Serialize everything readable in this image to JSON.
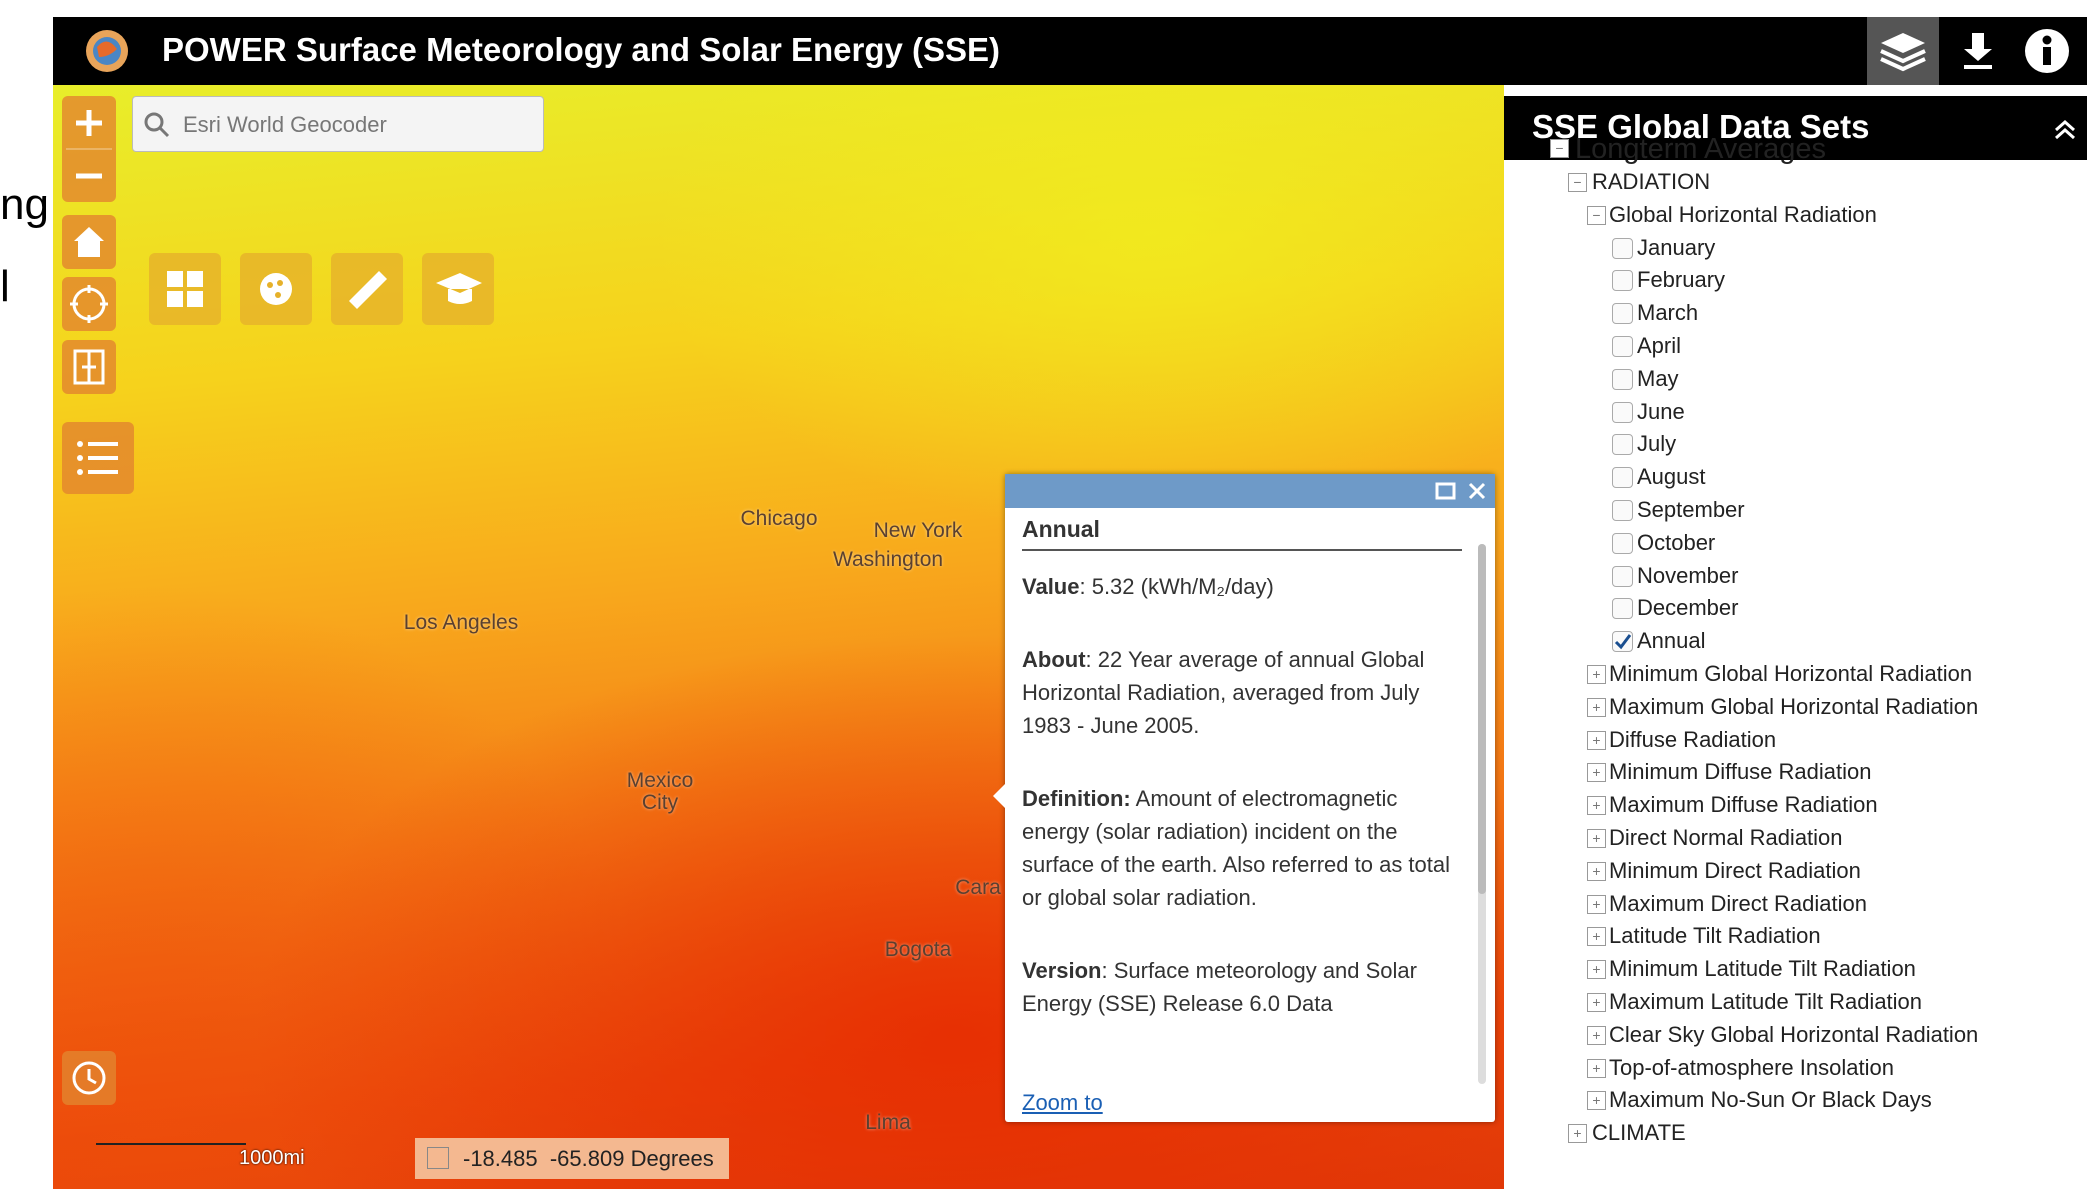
{
  "side_text": [
    "ng",
    "l"
  ],
  "header": {
    "title": "POWER Surface Meteorology and Solar Energy (SSE)"
  },
  "search": {
    "placeholder": "Esri World Geocoder"
  },
  "map": {
    "labels": [
      "Chicago",
      "New York",
      "Washington",
      "Los Angeles",
      "Mexico City",
      "Cara",
      "Bogota",
      "Lima"
    ],
    "scale": "1000mi",
    "coordinates": "-18.485  -65.809 Degrees"
  },
  "popup": {
    "title": "Annual",
    "sections": [
      {
        "label": "Value",
        "text": ": 5.32 (kWh/M₂/day)"
      },
      {
        "label": "About",
        "text": ": 22 Year average of annual Global Horizontal Radiation, averaged from July 1983 - June 2005."
      },
      {
        "label": "Definition:",
        "text": " Amount of electromagnetic energy (solar radiation) incident on the surface of the earth. Also referred to as total or global solar radiation."
      },
      {
        "label": "Version",
        "text": ": Surface meteorology and Solar Energy (SSE) Release 6.0 Data"
      }
    ],
    "link": "Zoom to"
  },
  "panel": {
    "title": "SSE Global Data Sets",
    "tree": {
      "label": "Longterm Averages",
      "groups": [
        {
          "label": "RADIATION",
          "expanded": {
            "label": "Global Horizontal Radiation",
            "options": [
              {
                "label": "January",
                "checked": false
              },
              {
                "label": "February",
                "checked": false
              },
              {
                "label": "March",
                "checked": false
              },
              {
                "label": "April",
                "checked": false
              },
              {
                "label": "May",
                "checked": false
              },
              {
                "label": "June",
                "checked": false
              },
              {
                "label": "July",
                "checked": false
              },
              {
                "label": "August",
                "checked": false
              },
              {
                "label": "September",
                "checked": false
              },
              {
                "label": "October",
                "checked": false
              },
              {
                "label": "November",
                "checked": false
              },
              {
                "label": "December",
                "checked": false
              },
              {
                "label": "Annual",
                "checked": true
              }
            ]
          },
          "collapsed": [
            "Minimum Global Horizontal Radiation",
            "Maximum Global Horizontal Radiation",
            "Diffuse Radiation",
            "Minimum Diffuse Radiation",
            "Maximum Diffuse Radiation",
            "Direct Normal Radiation",
            "Minimum Direct Radiation",
            "Maximum Direct Radiation",
            "Latitude Tilt Radiation",
            "Minimum Latitude Tilt Radiation",
            "Maximum Latitude Tilt Radiation",
            "Clear Sky Global Horizontal Radiation",
            "Top-of-atmosphere Insolation",
            "Maximum No-Sun Or Black Days"
          ]
        },
        {
          "label": "CLIMATE"
        }
      ]
    }
  }
}
